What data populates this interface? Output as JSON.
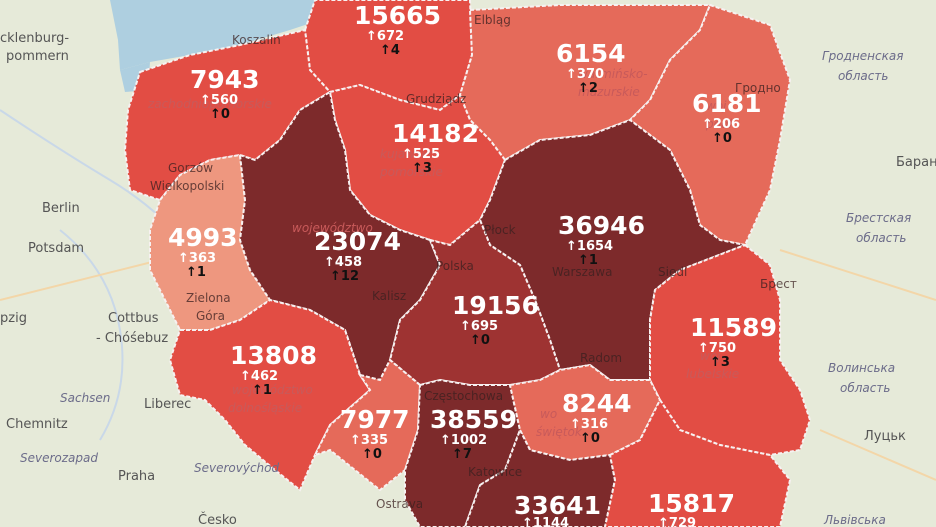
{
  "map": {
    "colors": {
      "background": "#e6ead9",
      "sea": "#aecfe0",
      "border": "#f7f1f1",
      "shade_lightest": "#ee977f",
      "shade_light": "#e56a5a",
      "shade_medium": "#e24d44",
      "shade_dark": "#9e3332",
      "shade_darkest": "#7d2a2b"
    },
    "regions": [
      {
        "id": "pomorskie",
        "cases": "15665",
        "new": "↑672",
        "deaths": "↑4",
        "shade": "shade_medium",
        "name_lines": []
      },
      {
        "id": "zachodniopomorskie",
        "cases": "7943",
        "new": "↑560",
        "deaths": "↑0",
        "shade": "shade_medium",
        "name_lines": [
          "zachodniopomorskie"
        ]
      },
      {
        "id": "warminsko-mazurskie",
        "cases": "6154",
        "new": "↑370",
        "deaths": "↑2",
        "shade": "shade_light",
        "name_lines": [
          "warmińsko-",
          "mazurskie"
        ]
      },
      {
        "id": "podlaskie",
        "cases": "6181",
        "new": "↑206",
        "deaths": "↑0",
        "shade": "shade_light",
        "name_lines": [
          "woj",
          "podl"
        ]
      },
      {
        "id": "kujawsko-pomorskie",
        "cases": "14182",
        "new": "↑525",
        "deaths": "↑3",
        "shade": "shade_medium",
        "name_lines": [
          "kujawsko-",
          "pomorskie"
        ]
      },
      {
        "id": "lubuskie",
        "cases": "4993",
        "new": "↑363",
        "deaths": "↑1",
        "shade": "shade_lightest",
        "name_lines": []
      },
      {
        "id": "wielkopolskie",
        "cases": "23074",
        "new": "↑458",
        "deaths": "↑12",
        "shade": "shade_darkest",
        "name_lines": [
          "województwo"
        ]
      },
      {
        "id": "mazowieckie",
        "cases": "36946",
        "new": "↑1654",
        "deaths": "↑1",
        "shade": "shade_darkest",
        "name_lines": []
      },
      {
        "id": "lodzkie",
        "cases": "19156",
        "new": "↑695",
        "deaths": "↑0",
        "shade": "shade_dark",
        "name_lines": []
      },
      {
        "id": "lubelskie",
        "cases": "11589",
        "new": "↑750",
        "deaths": "↑3",
        "shade": "shade_medium",
        "name_lines": [
          "woj",
          "lubelskie"
        ]
      },
      {
        "id": "dolnoslaskie",
        "cases": "13808",
        "new": "↑462",
        "deaths": "↑1",
        "shade": "shade_medium",
        "name_lines": [
          "województwo",
          "dolnośląskie"
        ]
      },
      {
        "id": "opolskie",
        "cases": "7977",
        "new": "↑335",
        "deaths": "↑0",
        "shade": "shade_light",
        "name_lines": []
      },
      {
        "id": "slaskie",
        "cases": "38559",
        "new": "↑1002",
        "deaths": "↑7",
        "shade": "shade_darkest",
        "name_lines": []
      },
      {
        "id": "swietokrzyskie",
        "cases": "8244",
        "new": "↑316",
        "deaths": "↑0",
        "shade": "shade_light",
        "name_lines": [
          "wo",
          "świętok"
        ]
      },
      {
        "id": "malopolskie",
        "cases": "33641",
        "new": "↑1144",
        "deaths": "",
        "shade": "shade_darkest",
        "name_lines": []
      },
      {
        "id": "podkarpackie",
        "cases": "15817",
        "new": "↑729",
        "deaths": "",
        "shade": "shade_medium",
        "name_lines": [
          "podk"
        ]
      }
    ],
    "region_cities": [
      {
        "id": "koszalin",
        "text": "Koszalin"
      },
      {
        "id": "gorzow",
        "text": "Gorzów"
      },
      {
        "id": "wielkopolski",
        "text": "Wielkopolski"
      },
      {
        "id": "zielona",
        "text": "Zielona"
      },
      {
        "id": "gora",
        "text": "Góra"
      },
      {
        "id": "kalisz",
        "text": "Kalisz"
      },
      {
        "id": "polska",
        "text": "Polska"
      },
      {
        "id": "plock",
        "text": "Płock"
      },
      {
        "id": "warszawa",
        "text": "Warszawa"
      },
      {
        "id": "siedlce",
        "text": "Siedl"
      },
      {
        "id": "radom",
        "text": "Radom"
      },
      {
        "id": "czestochowa",
        "text": "Częstochowa"
      },
      {
        "id": "katowice",
        "text": "Katowice"
      },
      {
        "id": "grudziadz",
        "text": "Grudziądz"
      },
      {
        "id": "elblag",
        "text": "Elbląg"
      },
      {
        "id": "grodno",
        "text": "Гродно"
      },
      {
        "id": "brest",
        "text": "Брест"
      },
      {
        "id": "ostrava",
        "text": "Ostrava"
      }
    ],
    "outside_places": [
      {
        "id": "mecklenburg",
        "text": "cklenburg-",
        "style": "place"
      },
      {
        "id": "vorpommern",
        "text": "pommern",
        "style": "place"
      },
      {
        "id": "berlin",
        "text": "Berlin",
        "style": "place"
      },
      {
        "id": "potsdam",
        "text": "Potsdam",
        "style": "place"
      },
      {
        "id": "cottbus",
        "text": "Cottbus",
        "style": "place"
      },
      {
        "id": "chosebuz",
        "text": "- Chóśebuz",
        "style": "place"
      },
      {
        "id": "leipzig",
        "text": "pzig",
        "style": "place"
      },
      {
        "id": "sachsen",
        "text": "Sachsen",
        "style": "place-it"
      },
      {
        "id": "chemnitz",
        "text": "Chemnitz",
        "style": "place"
      },
      {
        "id": "severozapad",
        "text": "Severozapad",
        "style": "place-it"
      },
      {
        "id": "liberec",
        "text": "Liberec",
        "style": "place"
      },
      {
        "id": "severovychod",
        "text": "Severovýchod",
        "style": "place-it"
      },
      {
        "id": "praha",
        "text": "Praha",
        "style": "place"
      },
      {
        "id": "cesko",
        "text": "Česko",
        "style": "place"
      },
      {
        "id": "baranovichi",
        "text": "Баран",
        "style": "place"
      },
      {
        "id": "grodno-obl-1",
        "text": "Гродненская",
        "style": "place-it"
      },
      {
        "id": "grodno-obl-2",
        "text": "область",
        "style": "place-it"
      },
      {
        "id": "brest-obl-1",
        "text": "Брестская",
        "style": "place-it"
      },
      {
        "id": "brest-obl-2",
        "text": "область",
        "style": "place-it"
      },
      {
        "id": "volyn-obl-1",
        "text": "Волинська",
        "style": "place-it"
      },
      {
        "id": "volyn-obl-2",
        "text": "область",
        "style": "place-it"
      },
      {
        "id": "lutsk",
        "text": "Луцьк",
        "style": "place"
      },
      {
        "id": "lviv-obl",
        "text": "Львівська",
        "style": "place-it"
      }
    ]
  }
}
